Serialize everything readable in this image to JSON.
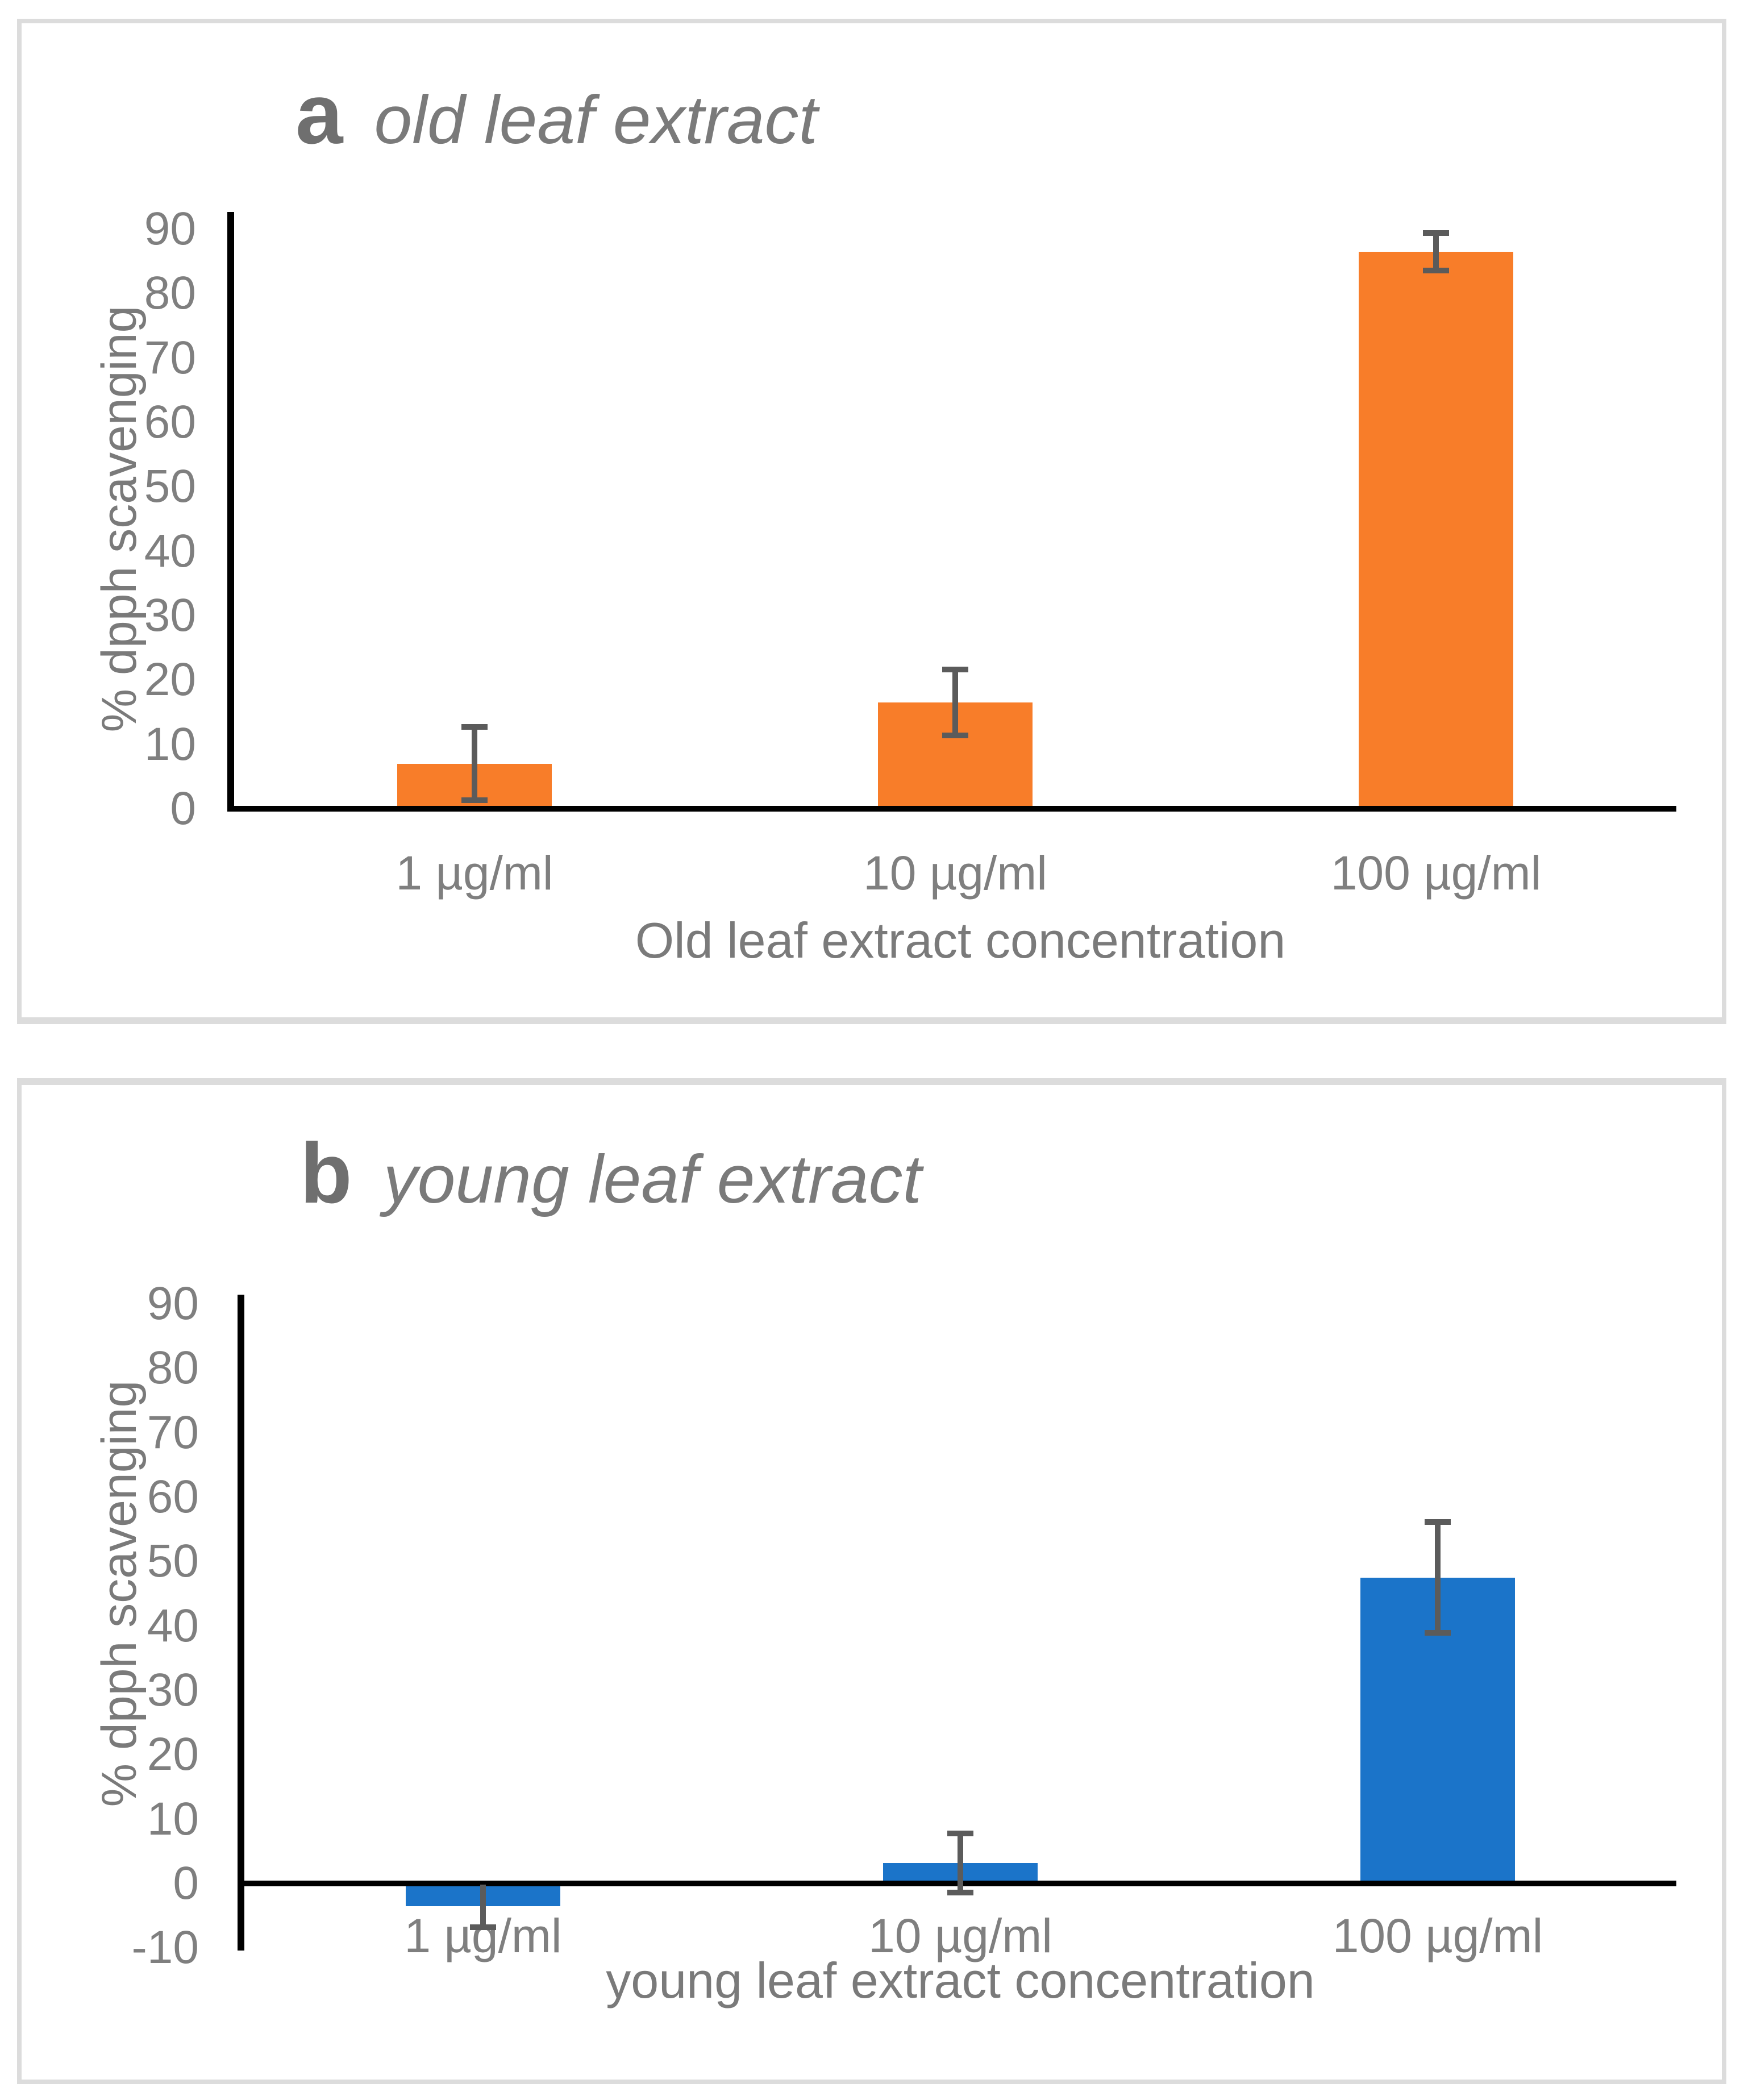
{
  "figure": {
    "background": "#ffffff",
    "panel_border_color": "#dcdcdc",
    "axis_line_color": "#000000",
    "error_bar_color": "#5b5b5b",
    "text_color": "#7f7f7f"
  },
  "chart_data": [
    {
      "type": "bar",
      "panel_letter": "a",
      "title": "old leaf extract",
      "categories": [
        "1 µg/ml",
        "10 µg/ml",
        "100 µg/ml"
      ],
      "values": [
        7,
        16.5,
        86.5
      ],
      "errors": [
        5.7,
        5.1,
        2.9
      ],
      "xlabel": "Old leaf extract concentration",
      "ylabel": "% dpph scavenging",
      "ylim": [
        0,
        90
      ],
      "y_step": 10,
      "bar_color": "#f87d29",
      "grid": false,
      "legend": false
    },
    {
      "type": "bar",
      "panel_letter": "b",
      "title": "young leaf extract",
      "categories": [
        "1 µg/ml",
        "10 µg/ml",
        "100 µg/ml"
      ],
      "values": [
        -3.5,
        3.2,
        47.5
      ],
      "errors": [
        3.3,
        4.6,
        8.6
      ],
      "xlabel": "young leaf extract concentration",
      "ylabel": "% dpph scavenging",
      "ylim": [
        -10,
        90
      ],
      "y_step": 10,
      "bar_color": "#1b74c9",
      "grid": false,
      "legend": false
    }
  ]
}
